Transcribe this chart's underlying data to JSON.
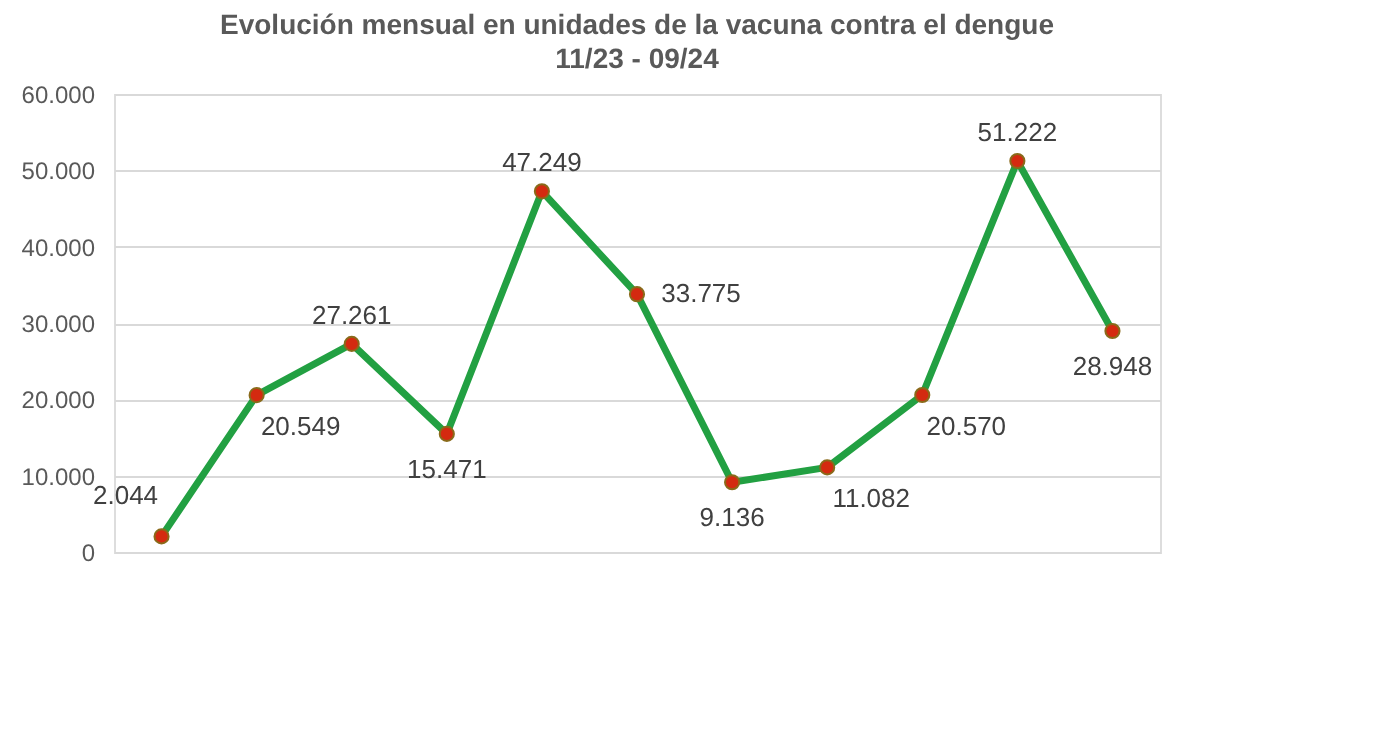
{
  "chart_data": {
    "type": "line",
    "title": "Evolución mensual en unidades de la vacuna contra el dengue",
    "subtitle": "11/23 - 09/24",
    "categories": [
      null,
      null,
      null,
      null,
      null,
      null,
      null,
      null,
      null,
      null,
      null
    ],
    "series": [
      {
        "color": "#22a042",
        "values": [
          2044,
          20549,
          27261,
          15471,
          47249,
          33775,
          9136,
          11082,
          20570,
          51222,
          28948
        ],
        "value_labels": [
          "2.044",
          "20.549",
          "27.261",
          "15.471",
          "47.249",
          "33.775",
          "9.136",
          "11.082",
          "20.570",
          "51.222",
          "28.948"
        ]
      }
    ],
    "ylim": [
      0,
      60000
    ],
    "yticks": [
      {
        "value": 0,
        "label": "0"
      },
      {
        "value": 10000,
        "label": "10.000"
      },
      {
        "value": 20000,
        "label": "20.000"
      },
      {
        "value": 30000,
        "label": "30.000"
      },
      {
        "value": 40000,
        "label": "40.000"
      },
      {
        "value": 50000,
        "label": "50.000"
      },
      {
        "value": 60000,
        "label": "60.000"
      }
    ],
    "grid": "y",
    "legend": false,
    "marker": "circle",
    "line_style": "solid",
    "tick_labels": "y"
  }
}
